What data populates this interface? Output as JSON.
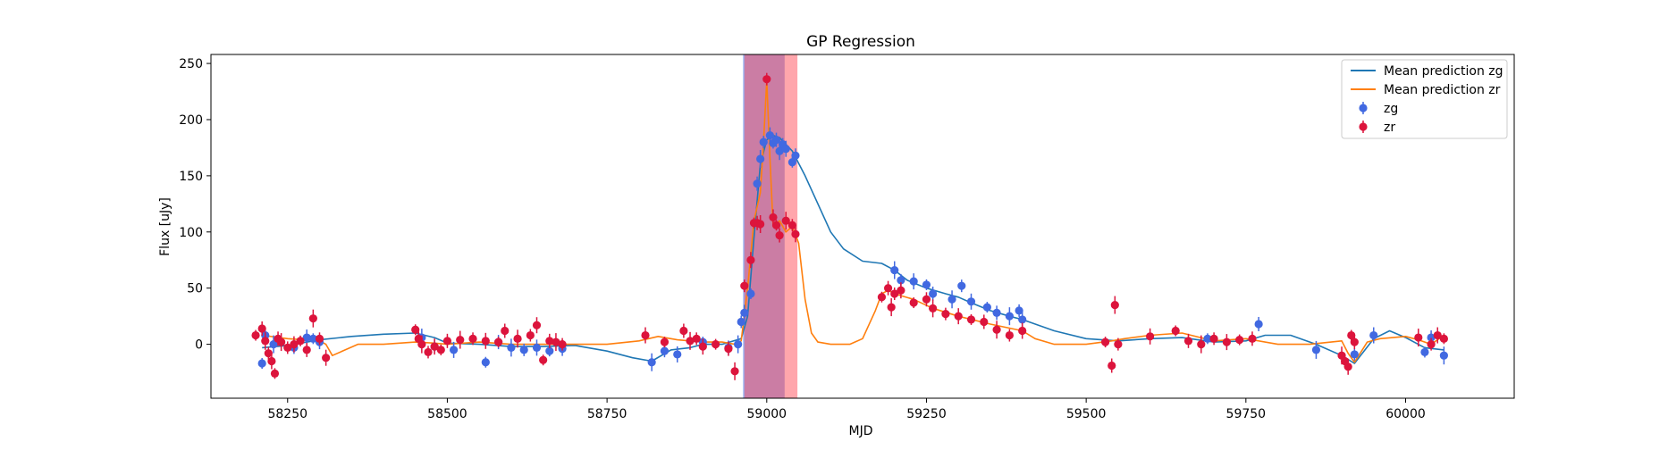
{
  "chart_data": {
    "type": "scatter",
    "title": "GP Regression",
    "xlabel": "MJD",
    "ylabel": "Flux [uJy]",
    "xlim": [
      58130,
      60170
    ],
    "ylim": [
      -48,
      258
    ],
    "xticks": [
      58250,
      58500,
      58750,
      59000,
      59250,
      59500,
      59750,
      60000
    ],
    "yticks": [
      0,
      50,
      100,
      150,
      200,
      250
    ],
    "legend_position": "top-right",
    "legend": [
      "Mean prediction zg",
      "Mean prediction zr",
      "zg",
      "zr"
    ],
    "colors": {
      "zg_line": "#1f77b4",
      "zr_line": "#ff7f0e",
      "zg_points": "#4169e1",
      "zr_points": "#dc143c",
      "band_blue": "#4169e1",
      "band_red": "#ff4d5a"
    },
    "shaded_regions": [
      {
        "name": "zg",
        "x0": 58963,
        "x1": 59028
      },
      {
        "name": "zr",
        "x0": 58965,
        "x1": 59048
      }
    ],
    "series": [
      {
        "name": "Mean prediction zg",
        "kind": "line",
        "x": [
          58210,
          58250,
          58300,
          58350,
          58400,
          58450,
          58480,
          58500,
          58550,
          58600,
          58650,
          58700,
          58750,
          58790,
          58820,
          58850,
          58880,
          58900,
          58930,
          58960,
          58970,
          58980,
          58990,
          59000,
          59010,
          59020,
          59030,
          59040,
          59060,
          59080,
          59100,
          59120,
          59150,
          59180,
          59200,
          59220,
          59250,
          59280,
          59300,
          59320,
          59350,
          59380,
          59400,
          59450,
          59500,
          59550,
          59600,
          59650,
          59700,
          59750,
          59780,
          59820,
          59860,
          59900,
          59920,
          59950,
          59975,
          60000,
          60030,
          60060
        ],
        "y": [
          -3,
          -1,
          4,
          7,
          9,
          10,
          6,
          1,
          0,
          -2,
          -2,
          -1,
          -6,
          -12,
          -15,
          -5,
          -3,
          0,
          0,
          5,
          25,
          95,
          160,
          182,
          186,
          184,
          178,
          172,
          150,
          125,
          100,
          85,
          74,
          72,
          66,
          57,
          50,
          45,
          42,
          37,
          30,
          25,
          22,
          12,
          5,
          3,
          5,
          6,
          2,
          3,
          8,
          8,
          0,
          -10,
          -17,
          5,
          12,
          6,
          -3,
          -5
        ]
      },
      {
        "name": "Mean prediction zr",
        "kind": "line",
        "x": [
          58210,
          58250,
          58300,
          58310,
          58320,
          58340,
          58360,
          58400,
          58450,
          58480,
          58500,
          58550,
          58600,
          58650,
          58680,
          58700,
          58750,
          58800,
          58830,
          58860,
          58900,
          58930,
          58950,
          58960,
          58970,
          58980,
          58990,
          58995,
          59000,
          59005,
          59010,
          59020,
          59030,
          59040,
          59050,
          59060,
          59070,
          59080,
          59100,
          59130,
          59150,
          59170,
          59180,
          59190,
          59200,
          59230,
          59260,
          59300,
          59350,
          59400,
          59420,
          59450,
          59500,
          59540,
          59560,
          59600,
          59650,
          59700,
          59750,
          59800,
          59850,
          59900,
          59910,
          59920,
          59940,
          59960,
          60000,
          60020,
          60040,
          60060
        ],
        "y": [
          8,
          5,
          3,
          0,
          -10,
          -5,
          0,
          0,
          2,
          1,
          0,
          2,
          0,
          0,
          0,
          0,
          0,
          3,
          7,
          4,
          2,
          2,
          0,
          3,
          50,
          110,
          135,
          180,
          235,
          165,
          105,
          110,
          100,
          105,
          90,
          40,
          10,
          2,
          0,
          0,
          5,
          30,
          45,
          48,
          45,
          40,
          32,
          25,
          18,
          12,
          5,
          0,
          0,
          3,
          5,
          8,
          10,
          3,
          5,
          0,
          0,
          3,
          -8,
          -16,
          2,
          5,
          7,
          4,
          0,
          8
        ]
      },
      {
        "name": "zg",
        "kind": "points",
        "x": [
          58210,
          58215,
          58228,
          58260,
          58280,
          58290,
          58300,
          58460,
          58480,
          58510,
          58560,
          58580,
          58600,
          58620,
          58640,
          58660,
          58680,
          58820,
          58840,
          58860,
          58900,
          58940,
          58955,
          58960,
          58965,
          58975,
          58985,
          58990,
          58995,
          59005,
          59010,
          59015,
          59020,
          59025,
          59030,
          59040,
          59045,
          59200,
          59210,
          59230,
          59250,
          59260,
          59290,
          59305,
          59320,
          59345,
          59360,
          59380,
          59395,
          59400,
          59690,
          59770,
          59860,
          59920,
          59950,
          60030,
          60040,
          60060
        ],
        "y": [
          -17,
          8,
          0,
          -3,
          6,
          5,
          2,
          6,
          -2,
          -5,
          -16,
          2,
          -3,
          -5,
          -3,
          -6,
          -4,
          -16,
          -6,
          -9,
          2,
          -3,
          0,
          20,
          28,
          45,
          143,
          165,
          180,
          186,
          179,
          182,
          172,
          178,
          174,
          162,
          168,
          66,
          57,
          56,
          53,
          45,
          40,
          52,
          38,
          33,
          28,
          25,
          30,
          22,
          5,
          18,
          -5,
          -9,
          8,
          -7,
          6,
          -10
        ]
      },
      {
        "name": "zr",
        "kind": "points",
        "x": [
          58200,
          58210,
          58215,
          58220,
          58225,
          58230,
          58235,
          58240,
          58250,
          58260,
          58270,
          58280,
          58290,
          58300,
          58310,
          58450,
          58455,
          58460,
          58470,
          58480,
          58490,
          58500,
          58520,
          58540,
          58560,
          58580,
          58590,
          58610,
          58630,
          58640,
          58650,
          58660,
          58670,
          58680,
          58810,
          58840,
          58870,
          58880,
          58890,
          58900,
          58920,
          58940,
          58950,
          58965,
          58975,
          58980,
          58985,
          58990,
          59000,
          59010,
          59015,
          59020,
          59030,
          59040,
          59045,
          59180,
          59190,
          59195,
          59200,
          59210,
          59230,
          59250,
          59260,
          59280,
          59300,
          59320,
          59340,
          59360,
          59380,
          59400,
          59530,
          59540,
          59545,
          59550,
          59600,
          59640,
          59660,
          59680,
          59700,
          59720,
          59740,
          59760,
          59900,
          59905,
          59910,
          59915,
          59920,
          60020,
          60040,
          60050,
          60060
        ],
        "y": [
          8,
          14,
          3,
          -8,
          -15,
          -26,
          5,
          2,
          -3,
          0,
          3,
          -5,
          23,
          5,
          -12,
          13,
          5,
          0,
          -7,
          -2,
          -5,
          3,
          4,
          5,
          3,
          2,
          12,
          5,
          8,
          17,
          -14,
          3,
          2,
          0,
          8,
          2,
          12,
          3,
          5,
          -2,
          0,
          -4,
          -24,
          52,
          75,
          108,
          108,
          107,
          236,
          113,
          106,
          97,
          110,
          106,
          98,
          42,
          50,
          33,
          45,
          48,
          37,
          40,
          32,
          27,
          25,
          22,
          20,
          13,
          8,
          12,
          2,
          -19,
          35,
          0,
          7,
          12,
          3,
          0,
          5,
          2,
          4,
          5,
          -10,
          -15,
          -20,
          8,
          2,
          6,
          0,
          8,
          5
        ]
      }
    ]
  }
}
